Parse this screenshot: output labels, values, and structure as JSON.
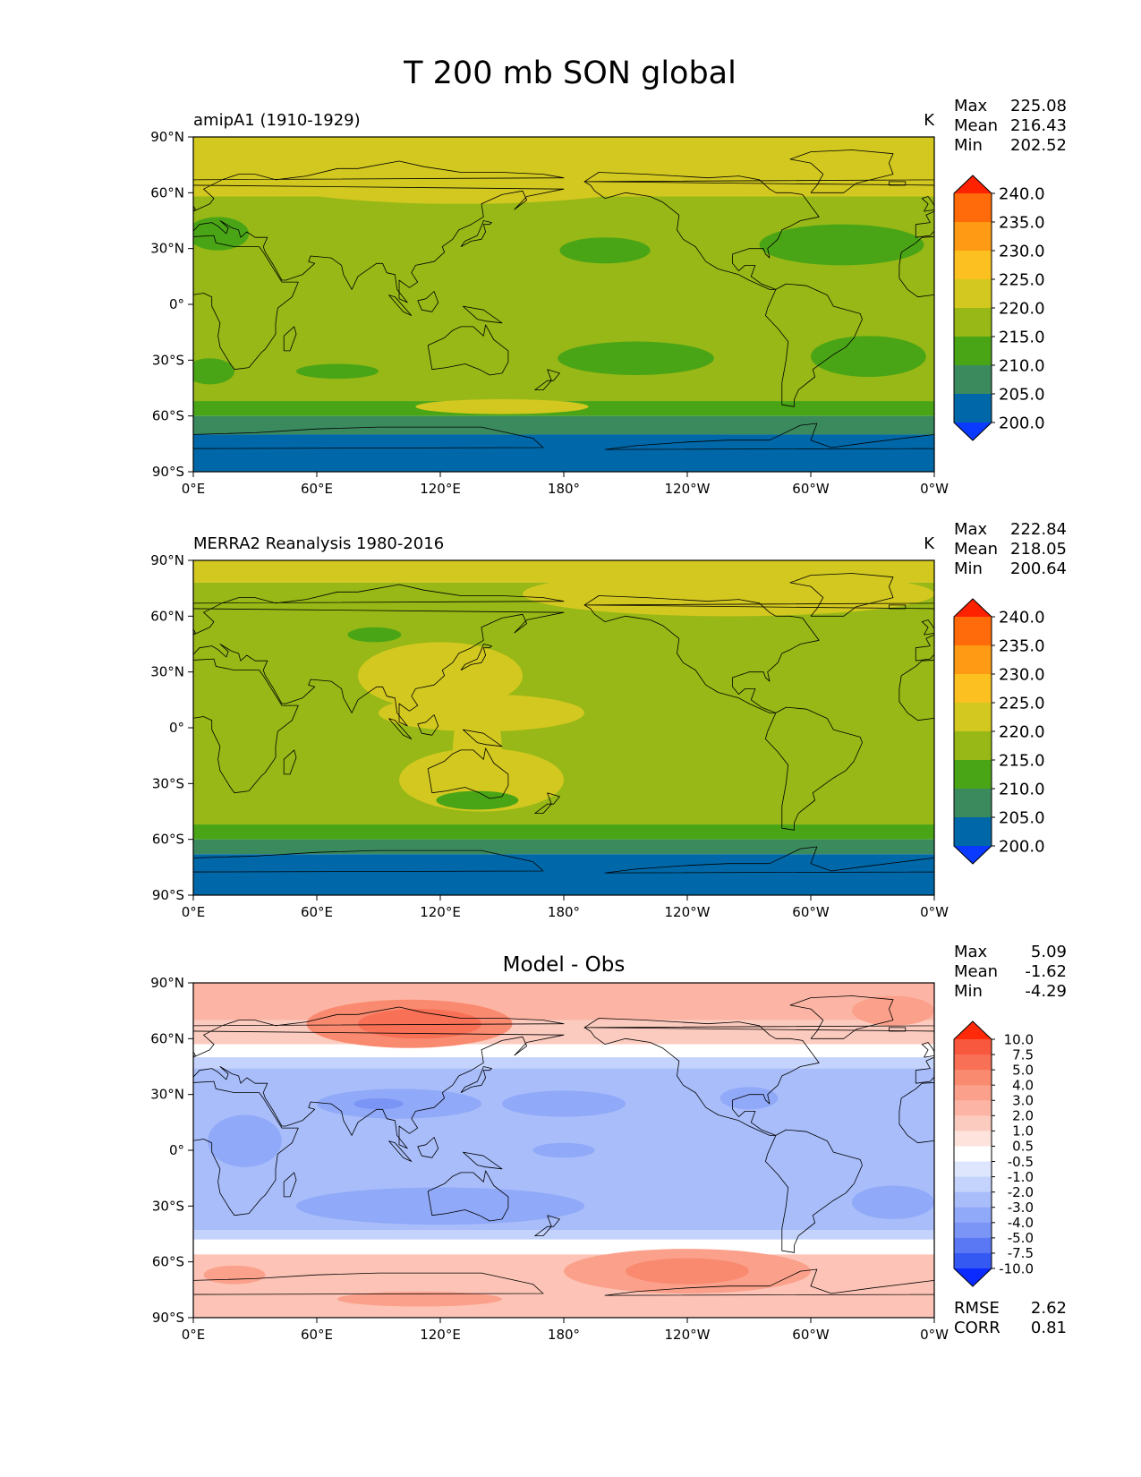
{
  "figure": {
    "title": "T 200 mb SON global"
  },
  "chart_data": [
    {
      "type": "heatmap",
      "panel": "model",
      "title": "amipA1 (1910-1929)",
      "units": "K",
      "stats": {
        "max_label": "Max",
        "max": "225.08",
        "mean_label": "Mean",
        "mean": "216.43",
        "min_label": "Min",
        "min": "202.52"
      },
      "x_ticks": [
        "0°E",
        "60°E",
        "120°E",
        "180°",
        "120°W",
        "60°W",
        "0°W"
      ],
      "y_ticks": [
        "90°N",
        "60°N",
        "30°N",
        "0°",
        "30°S",
        "60°S",
        "90°S"
      ],
      "xlim": [
        0,
        360
      ],
      "ylim": [
        -90,
        90
      ],
      "colorbar": {
        "levels": [
          "240.0",
          "235.0",
          "230.0",
          "225.0",
          "220.0",
          "215.0",
          "210.0",
          "205.0",
          "200.0"
        ],
        "colors": [
          "#ff2200",
          "#ff6a0a",
          "#ff9a14",
          "#fcc020",
          "#d3c820",
          "#97b816",
          "#4aa516",
          "#3b8a5e",
          "#0068a8",
          "#0a3aff"
        ]
      },
      "bands": [
        {
          "lat_top": 90,
          "lat_bottom": 58,
          "color": "#d3c820"
        },
        {
          "lat_top": 58,
          "lat_bottom": -52,
          "color": "#97b816"
        },
        {
          "lat_top": -52,
          "lat_bottom": -60,
          "color": "#4aa516"
        },
        {
          "lat_top": -60,
          "lat_bottom": -70,
          "color": "#3b8a5e"
        },
        {
          "lat_top": -70,
          "lat_bottom": -90,
          "color": "#0068a8"
        }
      ],
      "blobs": [
        {
          "lon": 130,
          "lat": 72,
          "rlon": 110,
          "rlat": 18,
          "color": "#d3c820"
        },
        {
          "lon": 315,
          "lat": 32,
          "rlon": 40,
          "rlat": 11,
          "color": "#4aa516"
        },
        {
          "lon": 200,
          "lat": 29,
          "rlon": 22,
          "rlat": 7,
          "color": "#4aa516"
        },
        {
          "lon": 215,
          "lat": -29,
          "rlon": 38,
          "rlat": 9,
          "color": "#4aa516"
        },
        {
          "lon": 328,
          "lat": -28,
          "rlon": 28,
          "rlat": 11,
          "color": "#4aa516"
        },
        {
          "lon": 70,
          "lat": -36,
          "rlon": 20,
          "rlat": 4,
          "color": "#4aa516"
        },
        {
          "lon": 8,
          "lat": -36,
          "rlon": 12,
          "rlat": 7,
          "color": "#4aa516"
        },
        {
          "lon": 12,
          "lat": 38,
          "rlon": 15,
          "rlat": 9,
          "color": "#4aa516"
        },
        {
          "lon": 150,
          "lat": -55,
          "rlon": 42,
          "rlat": 4,
          "color": "#d3c820"
        }
      ]
    },
    {
      "type": "heatmap",
      "panel": "observation",
      "title": "MERRA2 Reanalysis 1980-2016",
      "units": "K",
      "stats": {
        "max_label": "Max",
        "max": "222.84",
        "mean_label": "Mean",
        "mean": "218.05",
        "min_label": "Min",
        "min": "200.64"
      },
      "x_ticks": [
        "0°E",
        "60°E",
        "120°E",
        "180°",
        "120°W",
        "60°W",
        "0°W"
      ],
      "y_ticks": [
        "90°N",
        "60°N",
        "30°N",
        "0°",
        "30°S",
        "60°S",
        "90°S"
      ],
      "xlim": [
        0,
        360
      ],
      "ylim": [
        -90,
        90
      ],
      "colorbar": {
        "levels": [
          "240.0",
          "235.0",
          "230.0",
          "225.0",
          "220.0",
          "215.0",
          "210.0",
          "205.0",
          "200.0"
        ],
        "colors": [
          "#ff2200",
          "#ff6a0a",
          "#ff9a14",
          "#fcc020",
          "#d3c820",
          "#97b816",
          "#4aa516",
          "#3b8a5e",
          "#0068a8",
          "#0a3aff"
        ]
      },
      "bands": [
        {
          "lat_top": 90,
          "lat_bottom": 78,
          "color": "#d3c820"
        },
        {
          "lat_top": 78,
          "lat_bottom": -52,
          "color": "#97b816"
        },
        {
          "lat_top": -52,
          "lat_bottom": -60,
          "color": "#4aa516"
        },
        {
          "lat_top": -60,
          "lat_bottom": -68,
          "color": "#3b8a5e"
        },
        {
          "lat_top": -68,
          "lat_bottom": -90,
          "color": "#0068a8"
        }
      ],
      "blobs": [
        {
          "lon": 260,
          "lat": 72,
          "rlon": 100,
          "rlat": 12,
          "color": "#d3c820"
        },
        {
          "lon": 120,
          "lat": 28,
          "rlon": 40,
          "rlat": 18,
          "color": "#d3c820"
        },
        {
          "lon": 140,
          "lat": 8,
          "rlon": 50,
          "rlat": 10,
          "color": "#d3c820"
        },
        {
          "lon": 140,
          "lat": -28,
          "rlon": 40,
          "rlat": 17,
          "color": "#d3c820"
        },
        {
          "lon": 138,
          "lat": -13,
          "rlon": 12,
          "rlat": 30,
          "color": "#d3c820"
        },
        {
          "lon": 88,
          "lat": 50,
          "rlon": 13,
          "rlat": 4,
          "color": "#4aa516"
        },
        {
          "lon": 138,
          "lat": -39,
          "rlon": 20,
          "rlat": 5,
          "color": "#4aa516"
        }
      ]
    },
    {
      "type": "heatmap",
      "panel": "difference",
      "title": "Model - Obs",
      "units": "",
      "stats": {
        "max_label": "Max",
        "max": "5.09",
        "mean_label": "Mean",
        "mean": "-1.62",
        "min_label": "Min",
        "min": "-4.29"
      },
      "metrics": {
        "rmse_label": "RMSE",
        "rmse": "2.62",
        "corr_label": "CORR",
        "corr": "0.81"
      },
      "x_ticks": [
        "0°E",
        "60°E",
        "120°E",
        "180°",
        "120°W",
        "60°W",
        "0°W"
      ],
      "y_ticks": [
        "90°N",
        "60°N",
        "30°N",
        "0°",
        "30°S",
        "60°S",
        "90°S"
      ],
      "xlim": [
        0,
        360
      ],
      "ylim": [
        -90,
        90
      ],
      "colorbar": {
        "levels": [
          "10.0",
          "7.5",
          "5.0",
          "4.0",
          "3.0",
          "2.0",
          "1.0",
          "0.5",
          "-0.5",
          "-1.0",
          "-2.0",
          "-3.0",
          "-4.0",
          "-5.0",
          "-7.5",
          "-10.0"
        ],
        "colors": [
          "#ff2a0a",
          "#f8583e",
          "#f87055",
          "#f98a70",
          "#fba08a",
          "#fcb5a4",
          "#fccbbf",
          "#fde3dc",
          "#ffffff",
          "#dde6fd",
          "#c4d3fc",
          "#a8bdfa",
          "#90a9f8",
          "#7a95f6",
          "#5b78f4",
          "#3458f2",
          "#0a2aff"
        ]
      },
      "bands": [
        {
          "lat_top": 90,
          "lat_bottom": 70,
          "color": "#fcb5a4"
        },
        {
          "lat_top": 70,
          "lat_bottom": 57,
          "color": "#fccbbf"
        },
        {
          "lat_top": 57,
          "lat_bottom": 50,
          "color": "#ffffff"
        },
        {
          "lat_top": 50,
          "lat_bottom": 44,
          "color": "#c4d3fc"
        },
        {
          "lat_top": 44,
          "lat_bottom": -43,
          "color": "#a8bdfa"
        },
        {
          "lat_top": -43,
          "lat_bottom": -48,
          "color": "#c4d3fc"
        },
        {
          "lat_top": -48,
          "lat_bottom": -56,
          "color": "#ffffff"
        },
        {
          "lat_top": -56,
          "lat_bottom": -90,
          "color": "#fcc3b6"
        }
      ],
      "blobs": [
        {
          "lon": 105,
          "lat": 68,
          "rlon": 50,
          "rlat": 13,
          "color": "#f98a70"
        },
        {
          "lon": 110,
          "lat": 68,
          "rlon": 30,
          "rlat": 8,
          "color": "#f87055"
        },
        {
          "lon": 340,
          "lat": 75,
          "rlon": 20,
          "rlat": 8,
          "color": "#fba08a"
        },
        {
          "lon": 100,
          "lat": 25,
          "rlon": 40,
          "rlat": 8,
          "color": "#90a9f8"
        },
        {
          "lon": 180,
          "lat": 25,
          "rlon": 30,
          "rlat": 7,
          "color": "#90a9f8"
        },
        {
          "lon": 270,
          "lat": 28,
          "rlon": 14,
          "rlat": 6,
          "color": "#90a9f8"
        },
        {
          "lon": 120,
          "lat": -30,
          "rlon": 70,
          "rlat": 10,
          "color": "#90a9f8"
        },
        {
          "lon": 340,
          "lat": -28,
          "rlon": 20,
          "rlat": 9,
          "color": "#90a9f8"
        },
        {
          "lon": 25,
          "lat": 5,
          "rlon": 18,
          "rlat": 14,
          "color": "#90a9f8"
        },
        {
          "lon": 180,
          "lat": 0,
          "rlon": 15,
          "rlat": 4,
          "color": "#90a9f8"
        },
        {
          "lon": 90,
          "lat": 25,
          "rlon": 12,
          "rlat": 3,
          "color": "#7a95f6"
        },
        {
          "lon": 240,
          "lat": -65,
          "rlon": 60,
          "rlat": 12,
          "color": "#fba08a"
        },
        {
          "lon": 240,
          "lat": -65,
          "rlon": 30,
          "rlat": 7,
          "color": "#f98a70"
        },
        {
          "lon": 110,
          "lat": -80,
          "rlon": 40,
          "rlat": 4,
          "color": "#fba08a"
        },
        {
          "lon": 20,
          "lat": -67,
          "rlon": 15,
          "rlat": 5,
          "color": "#fba08a"
        }
      ]
    }
  ]
}
